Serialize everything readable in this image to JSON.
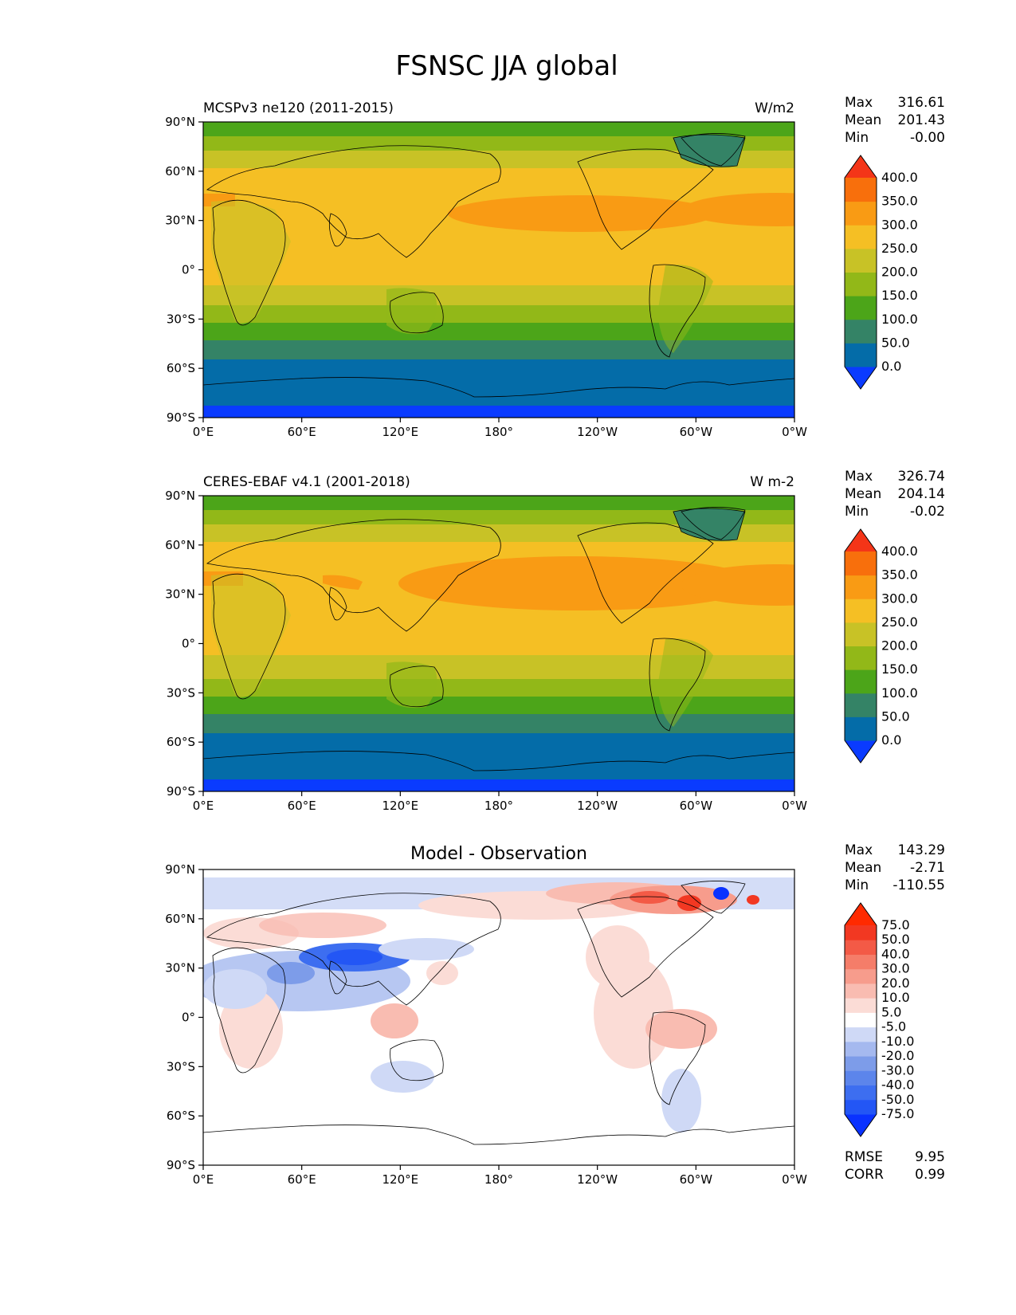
{
  "title": "FSNSC JJA global",
  "lon_ticks": [
    "0°E",
    "60°E",
    "120°E",
    "180°",
    "120°W",
    "60°W",
    "0°W"
  ],
  "lat_ticks": [
    "90°N",
    "60°N",
    "30°N",
    "0°",
    "30°S",
    "60°S",
    "90°S"
  ],
  "panels": [
    {
      "id": "model",
      "left_title": "MCSPv3 ne120 (2011-2015)",
      "center_title": "",
      "right_title": "W/m2",
      "stats": {
        "max_label": "Max",
        "max": "316.61",
        "mean_label": "Mean",
        "mean": "201.43",
        "min_label": "Min",
        "min": "-0.00"
      },
      "colorbar": {
        "colors": [
          "#0a3bff",
          "#046ca8",
          "#348366",
          "#4ca519",
          "#92b818",
          "#c8c226",
          "#f5bf24",
          "#f99b14",
          "#f86f0c",
          "#f43518"
        ],
        "labels": [
          "0.0",
          "50.0",
          "100.0",
          "150.0",
          "200.0",
          "250.0",
          "300.0",
          "350.0",
          "400.0"
        ]
      },
      "footer": null
    },
    {
      "id": "obs",
      "left_title": "CERES-EBAF v4.1 (2001-2018)",
      "center_title": "",
      "right_title": "W m-2",
      "stats": {
        "max_label": "Max",
        "max": "326.74",
        "mean_label": "Mean",
        "mean": "204.14",
        "min_label": "Min",
        "min": "-0.02"
      },
      "colorbar": {
        "colors": [
          "#0a3bff",
          "#046ca8",
          "#348366",
          "#4ca519",
          "#92b818",
          "#c8c226",
          "#f5bf24",
          "#f99b14",
          "#f86f0c",
          "#f43518"
        ],
        "labels": [
          "0.0",
          "50.0",
          "100.0",
          "150.0",
          "200.0",
          "250.0",
          "300.0",
          "350.0",
          "400.0"
        ]
      },
      "footer": null
    },
    {
      "id": "diff",
      "left_title": "",
      "center_title": "Model - Observation",
      "right_title": "",
      "stats": {
        "max_label": "Max",
        "max": "143.29",
        "mean_label": "Mean",
        "mean": "-2.71",
        "min_label": "Min",
        "min": "-110.55"
      },
      "colorbar": {
        "colors": [
          "#0a32ff",
          "#2356f5",
          "#3d6ef0",
          "#5c85eb",
          "#7d9ce9",
          "#a5b9ef",
          "#cfd9f6",
          "#ffffff",
          "#fbdcd6",
          "#f9bcb1",
          "#f79c8c",
          "#f57d69",
          "#f35a46",
          "#f23822",
          "#ff2a00"
        ],
        "labels": [
          "-75.0",
          "-50.0",
          "-40.0",
          "-30.0",
          "-20.0",
          "-10.0",
          "-5.0",
          "5.0",
          "10.0",
          "20.0",
          "30.0",
          "40.0",
          "50.0",
          "75.0"
        ]
      },
      "footer": {
        "rmse_label": "RMSE",
        "rmse": "9.95",
        "corr_label": "CORR",
        "corr": "0.99"
      }
    }
  ]
}
